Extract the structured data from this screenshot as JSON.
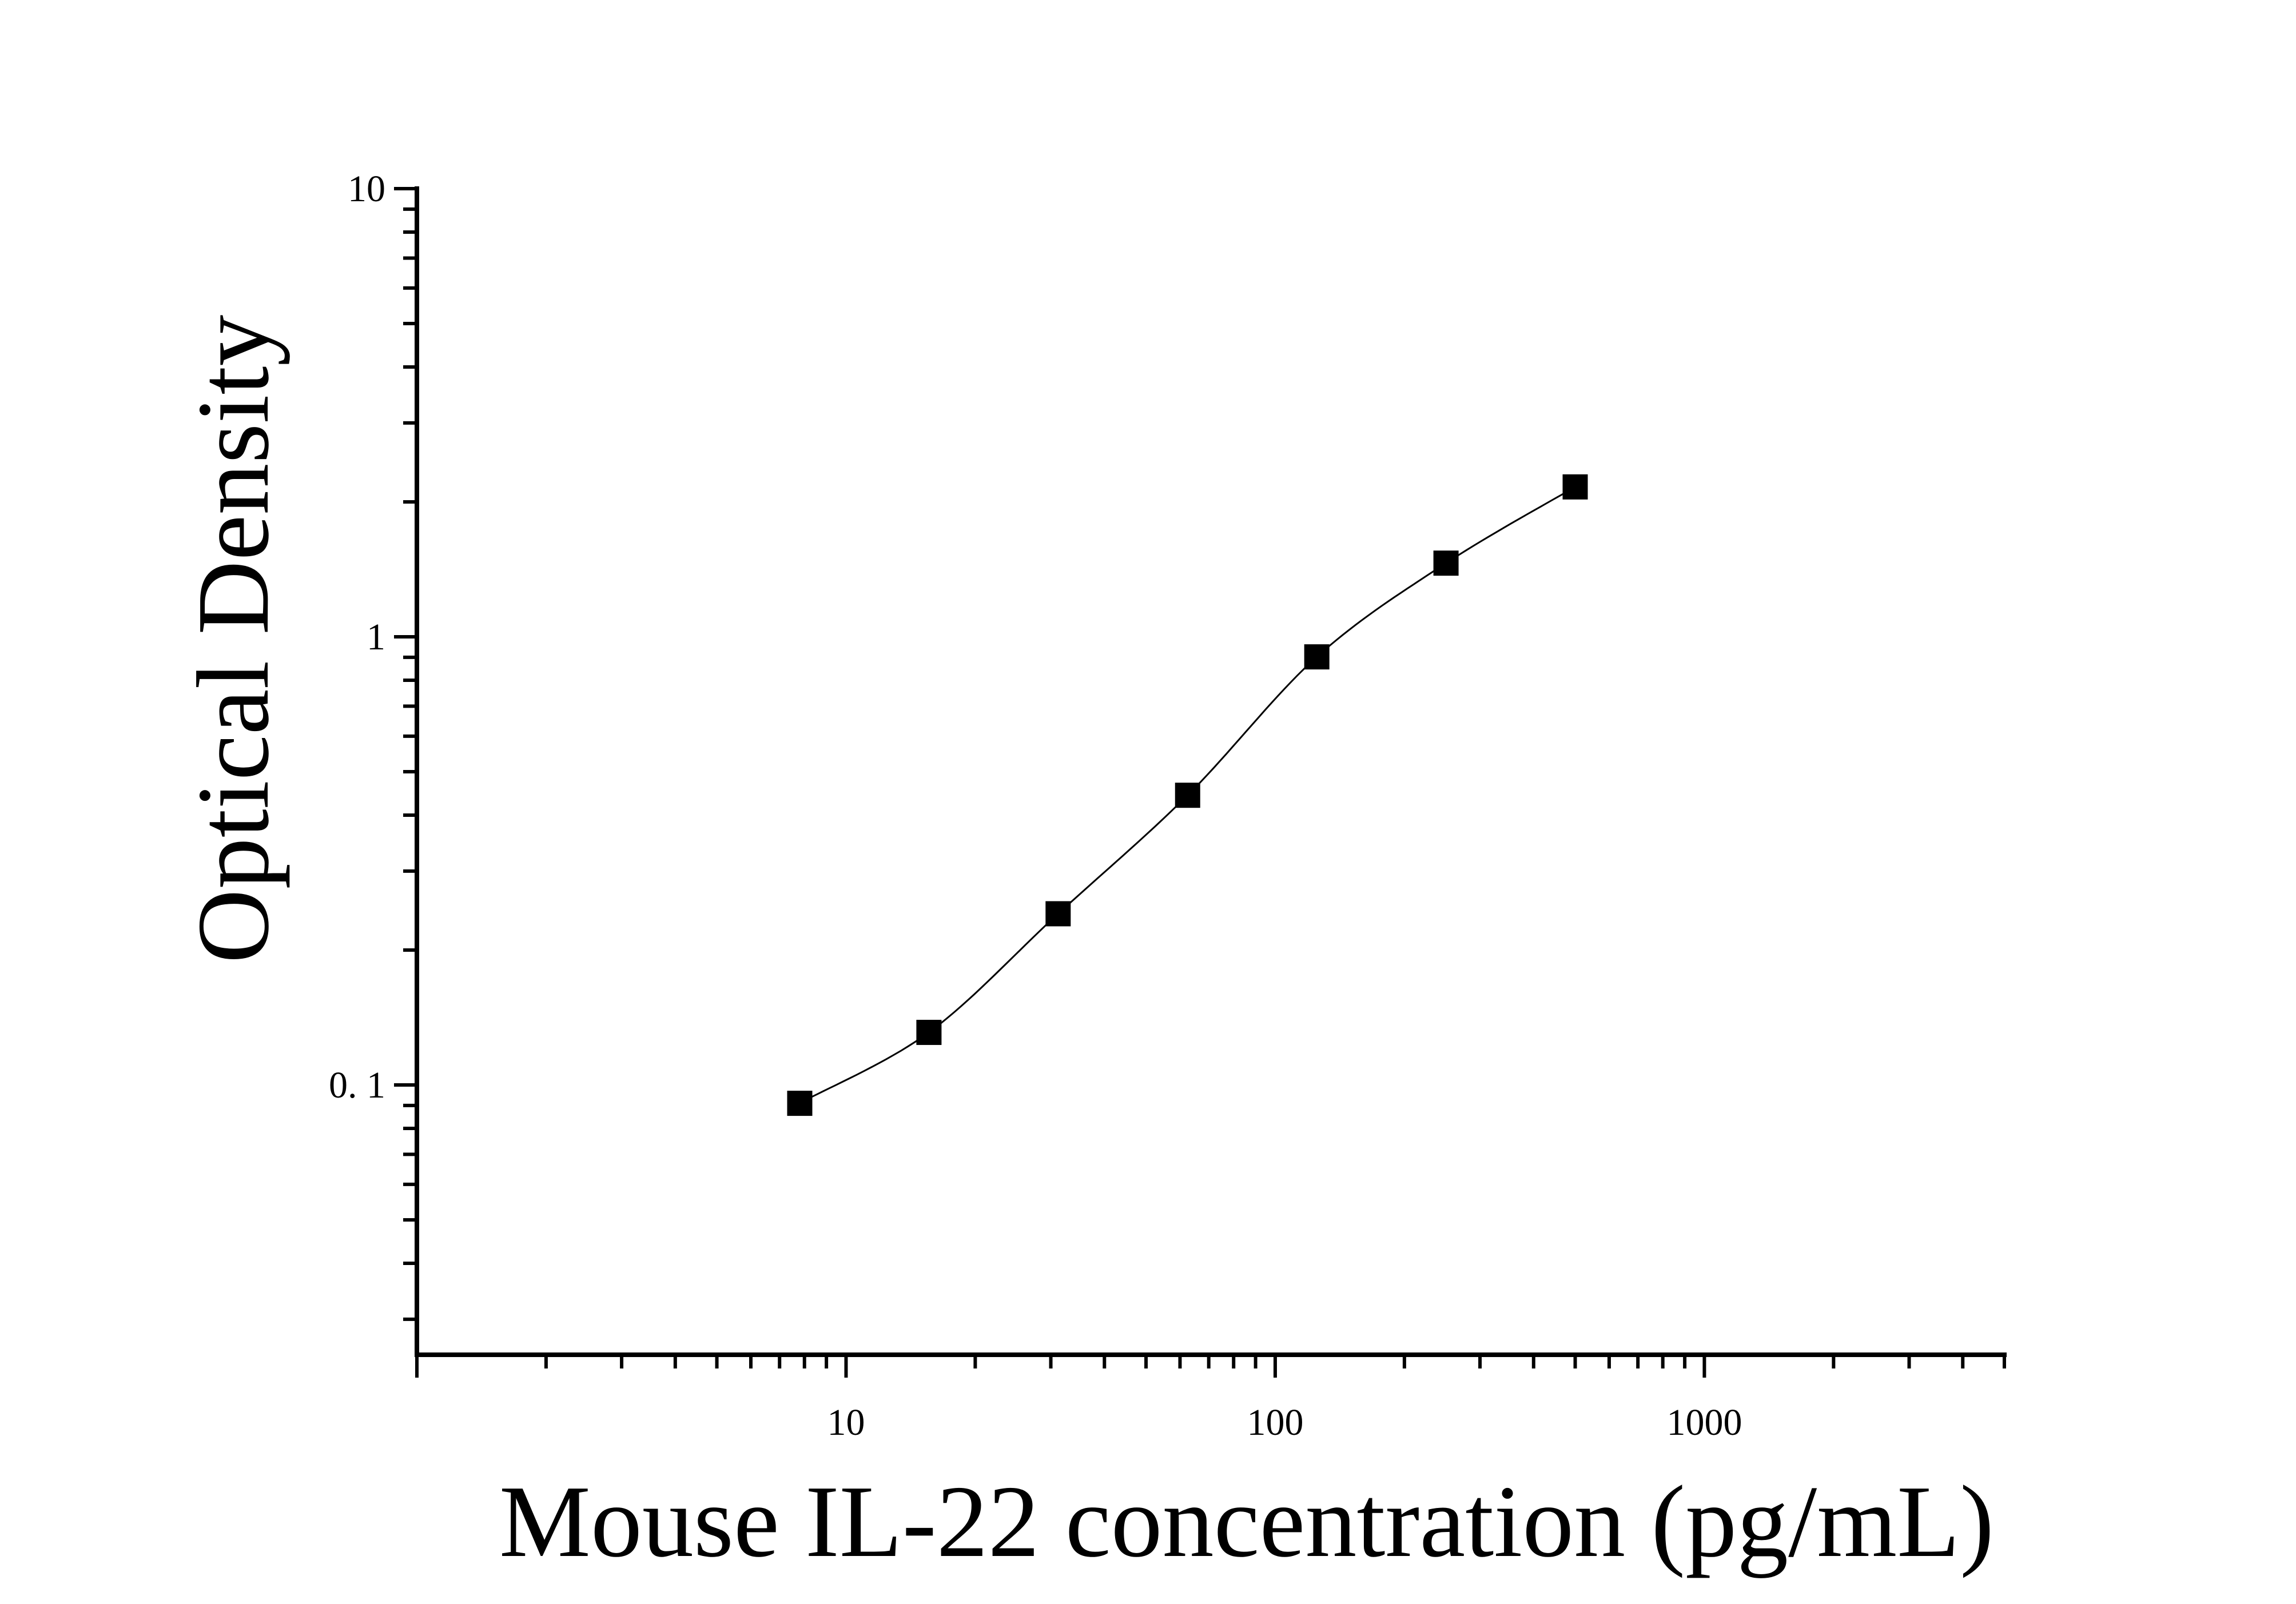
{
  "chart_data": {
    "type": "scatter",
    "title": "",
    "xlabel": "Mouse IL-22 concentration (pg/mL)",
    "ylabel": "Optical Density",
    "x_scale": "log",
    "y_scale": "log",
    "xlim": [
      1,
      5000
    ],
    "ylim": [
      0.025,
      10
    ],
    "x_tick_labels": [
      {
        "value": 10,
        "label": "10"
      },
      {
        "value": 100,
        "label": "100"
      },
      {
        "value": 1000,
        "label": "1000"
      }
    ],
    "y_tick_labels": [
      {
        "value": 10,
        "label": "10"
      },
      {
        "value": 1,
        "label": "1"
      },
      {
        "value": 0.1,
        "label": "0. 1"
      }
    ],
    "grid": false,
    "legend": false,
    "series": [
      {
        "marker": "square",
        "color": "#000000",
        "points": [
          {
            "x": 7.8,
            "y": 0.091
          },
          {
            "x": 15.6,
            "y": 0.131
          },
          {
            "x": 31.2,
            "y": 0.241
          },
          {
            "x": 62.5,
            "y": 0.443
          },
          {
            "x": 125,
            "y": 0.902
          },
          {
            "x": 250,
            "y": 1.46
          },
          {
            "x": 500,
            "y": 2.16
          }
        ]
      }
    ],
    "fit_curve": {
      "type": "4-parameter logistic",
      "color": "#000000"
    }
  }
}
